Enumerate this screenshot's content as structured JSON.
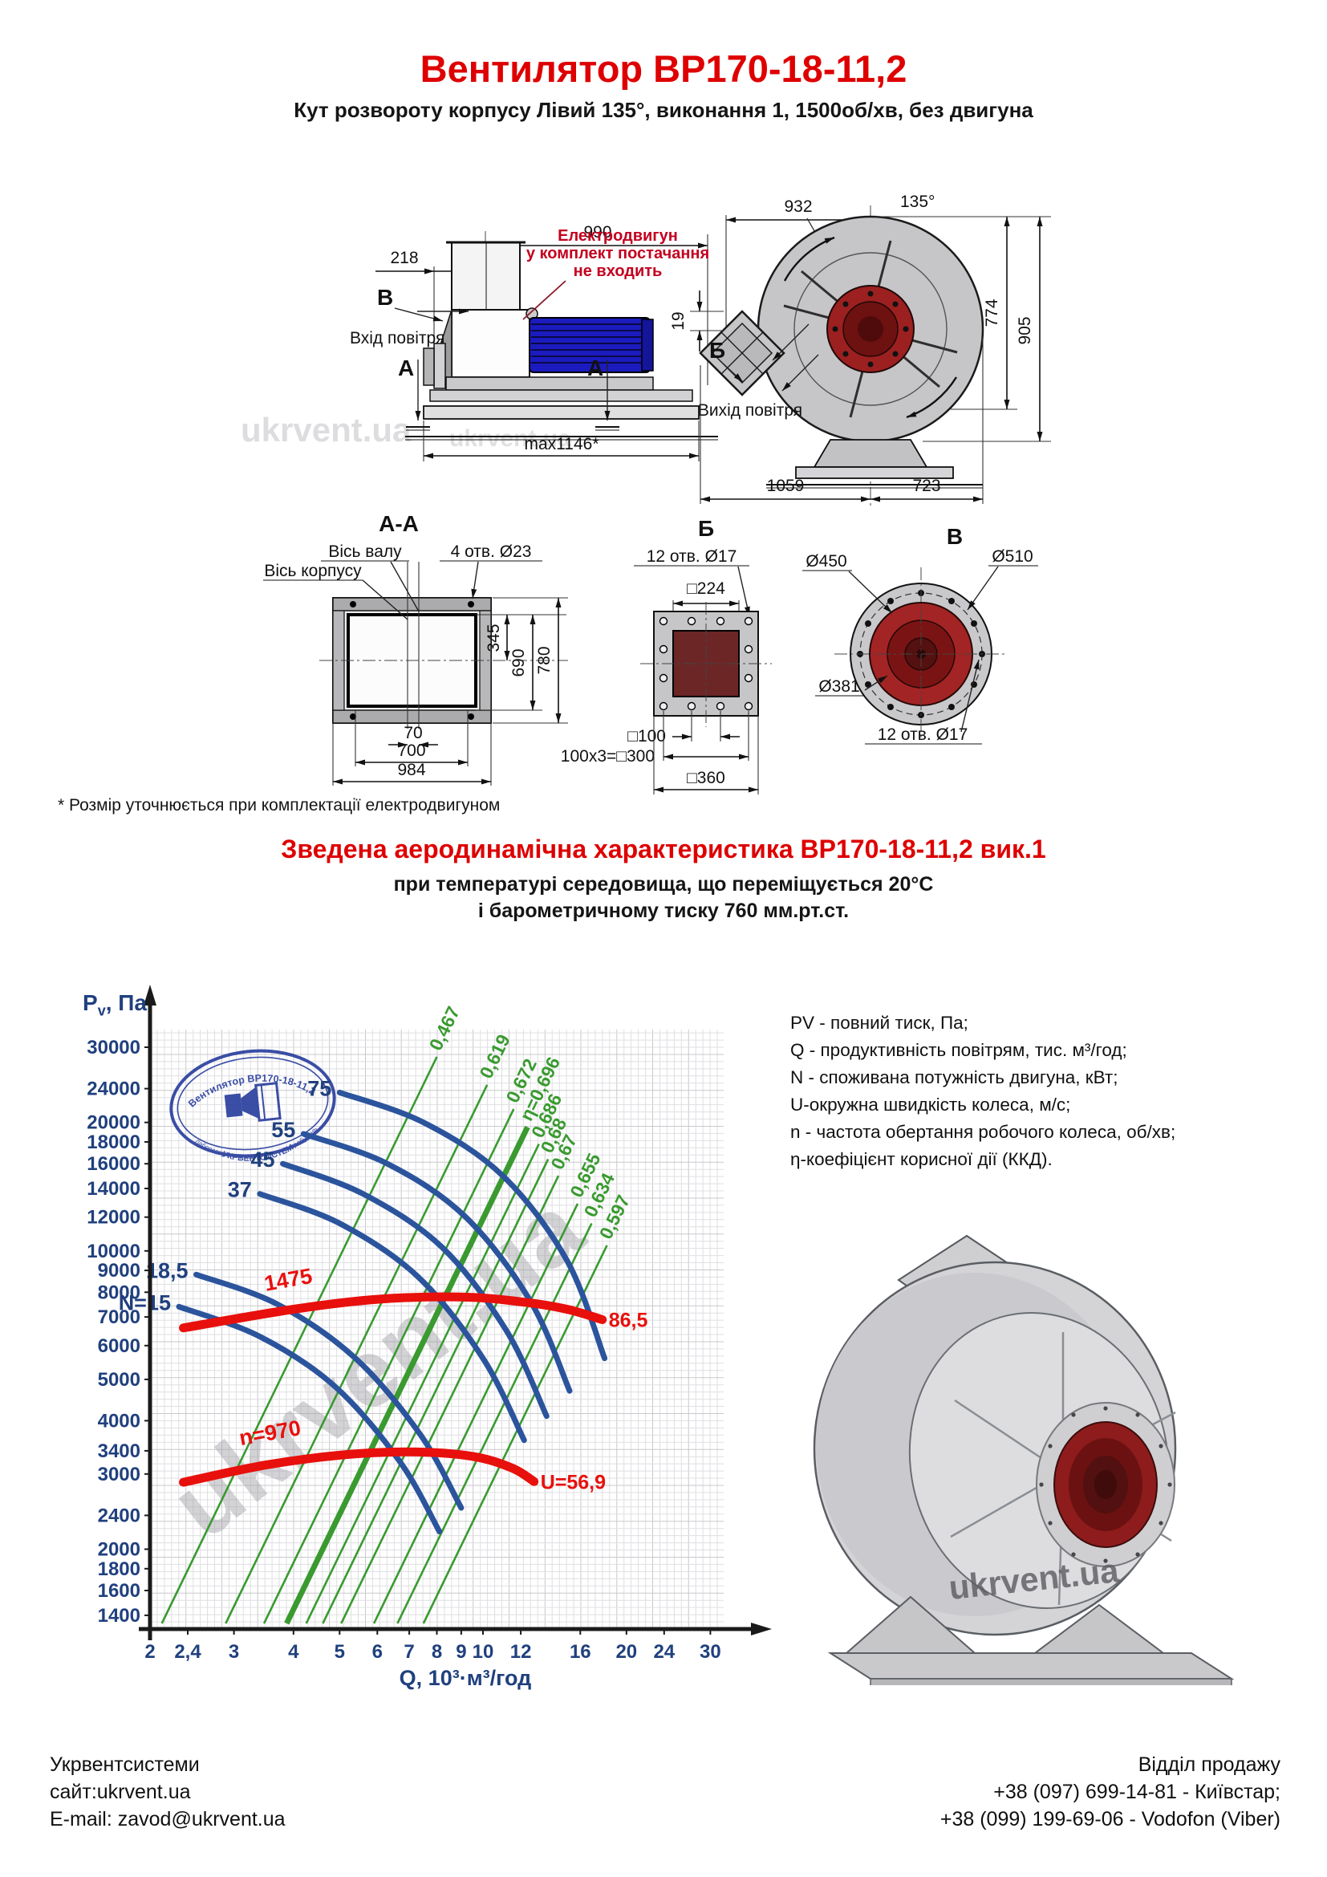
{
  "page": {
    "title": "Вентилятор ВР170-18-11,2",
    "subtitle": "Кут розвороту корпусу Лівий 135°, виконання 1, 1500об/хв, без двигуна",
    "note": "* Розмір уточнюється при комплектації електродвигуном",
    "aero_heading": "Зведена аеродинамічна характеристика ВР170-18-11,2 вик.1",
    "aero_sub1": "при температурі середовища, що переміщується 20°С",
    "aero_sub2": "і барометричному тиску 760 мм.рт.ст.",
    "watermark": "ukrvent.ua"
  },
  "drawings": {
    "side_view": {
      "dim_218": "218",
      "dim_990": "990",
      "dim_max": "max1146*",
      "label_v": "В",
      "label_a": "А",
      "inlet_label": "Вхід повітря",
      "motor_note_1": "Електродвигун",
      "motor_note_2": "у комплект постачання",
      "motor_note_3": "не входить"
    },
    "front_view": {
      "dim_932": "932",
      "dim_angle": "135°",
      "dim_19": "19",
      "dim_774": "774",
      "dim_905": "905",
      "dim_1059": "1059",
      "dim_723": "723",
      "label_b": "Б",
      "outlet_label": "Вихід повітря"
    },
    "section_aa": {
      "title": "А-А",
      "axis_shaft": "Вісь валу",
      "axis_body": "Вісь корпусу",
      "holes": "4 отв. Ø23",
      "dim_345": "345",
      "dim_690": "690",
      "dim_780": "780",
      "dim_70": "70",
      "dim_700": "700",
      "dim_984": "984"
    },
    "section_b": {
      "title": "Б",
      "holes": "12 отв. Ø17",
      "dim_224": "□224",
      "dim_100": "□100",
      "dim_300": "100х3=□300",
      "dim_360": "□360"
    },
    "section_v": {
      "title": "В",
      "d450": "Ø450",
      "d510": "Ø510",
      "d381": "Ø381",
      "holes": "12 отв. Ø17"
    }
  },
  "chart_data": {
    "type": "line",
    "title": "Зведена аеродинамічна характеристика ВР170-18-11,2 вик.1",
    "axes": "log-log",
    "grid": "fine graph-paper grid",
    "x_label": "Q, 10³·м³/год",
    "y_label_main": "P",
    "y_label_sub": "v",
    "y_label_rest": ", Па",
    "x_range": [
      2,
      32
    ],
    "y_range": [
      1300,
      33000
    ],
    "x_ticks": [
      2,
      2.4,
      3,
      4,
      5,
      6,
      7,
      8,
      9,
      10,
      12,
      16,
      20,
      24,
      30
    ],
    "x_tick_labels": [
      "2",
      "2,4",
      "3",
      "4",
      "5",
      "6",
      "7",
      "8",
      "9",
      "10",
      "12",
      "16",
      "20",
      "24",
      "30"
    ],
    "y_ticks": [
      30000,
      24000,
      20000,
      18000,
      16000,
      14000,
      12000,
      10000,
      9000,
      8000,
      7000,
      6000,
      5000,
      4000,
      3400,
      3000,
      2400,
      2000,
      1800,
      1600,
      1400
    ],
    "y_tick_labels": [
      "30000",
      "24000",
      "20000",
      "18000",
      "16000",
      "14000",
      "12000",
      "10000",
      "9000",
      "8000",
      "7000",
      "6000",
      "5000",
      "4000",
      "3400",
      "3000",
      "2400",
      "2000",
      "1800",
      "1600",
      "1400"
    ],
    "power_curves": [
      {
        "label": "75",
        "points": [
          [
            5.0,
            23500
          ],
          [
            7.5,
            20000
          ],
          [
            11,
            15000
          ],
          [
            15,
            9500
          ],
          [
            18.0,
            5600
          ]
        ]
      },
      {
        "label": "55",
        "points": [
          [
            4.2,
            18800
          ],
          [
            6.3,
            16000
          ],
          [
            9.2,
            12000
          ],
          [
            12.6,
            7600
          ],
          [
            15.2,
            4700
          ]
        ]
      },
      {
        "label": "45",
        "points": [
          [
            3.8,
            16000
          ],
          [
            5.6,
            13600
          ],
          [
            8.2,
            10200
          ],
          [
            11.2,
            6500
          ],
          [
            13.6,
            4100
          ]
        ]
      },
      {
        "label": "37",
        "points": [
          [
            3.4,
            13600
          ],
          [
            5.0,
            11600
          ],
          [
            7.3,
            8700
          ],
          [
            10.0,
            5600
          ],
          [
            12.2,
            3600
          ]
        ]
      },
      {
        "label": "18,5",
        "points": [
          [
            2.5,
            8800
          ],
          [
            3.7,
            7500
          ],
          [
            5.4,
            5600
          ],
          [
            7.4,
            3700
          ],
          [
            9.0,
            2500
          ]
        ]
      },
      {
        "label": "N=15",
        "points": [
          [
            2.3,
            7400
          ],
          [
            3.4,
            6300
          ],
          [
            4.9,
            4800
          ],
          [
            6.7,
            3200
          ],
          [
            8.1,
            2200
          ]
        ]
      }
    ],
    "efficiency_lines": [
      {
        "label": "0,467",
        "q": 8.0,
        "p": 28500,
        "bold": false
      },
      {
        "label": "0,619",
        "q": 10.2,
        "p": 24500,
        "bold": false
      },
      {
        "label": "0,672",
        "q": 11.6,
        "p": 21500,
        "bold": false
      },
      {
        "label": "η=0,696",
        "q": 12.4,
        "p": 19500,
        "bold": true
      },
      {
        "label": "0,686",
        "q": 13.1,
        "p": 17800,
        "bold": false
      },
      {
        "label": "0,68",
        "q": 13.7,
        "p": 16400,
        "bold": false
      },
      {
        "label": "0,67",
        "q": 14.4,
        "p": 15000,
        "bold": false
      },
      {
        "label": "0,655",
        "q": 15.8,
        "p": 12900,
        "bold": false
      },
      {
        "label": "0,634",
        "q": 16.9,
        "p": 11600,
        "bold": false
      },
      {
        "label": "0,597",
        "q": 18.2,
        "p": 10300,
        "bold": false
      }
    ],
    "speed_curves": [
      {
        "label": "1475",
        "label_at": [
          3.5,
          8050
        ],
        "label_rot": -10,
        "end_label": "86,5",
        "points": [
          [
            2.35,
            6600
          ],
          [
            4,
            7300
          ],
          [
            6,
            7700
          ],
          [
            9,
            7800
          ],
          [
            12,
            7600
          ],
          [
            15,
            7300
          ],
          [
            17.8,
            6900
          ]
        ]
      },
      {
        "label": "n=970",
        "label_at": [
          3.1,
          3500
        ],
        "label_rot": -10,
        "end_label": "U=56,9",
        "points": [
          [
            2.35,
            2870
          ],
          [
            3.5,
            3150
          ],
          [
            5,
            3320
          ],
          [
            7,
            3380
          ],
          [
            9.5,
            3300
          ],
          [
            11.5,
            3100
          ],
          [
            12.8,
            2880
          ]
        ]
      }
    ],
    "stamp": {
      "line1": "Вентилятор ВР170-18-11,2",
      "line2": "лабораторія аеродинамічних випробувань",
      "line3": "УКРВЕНТСИСТЕМ"
    },
    "colors": {
      "curve_blue": "#2b549c",
      "eff_green": "#3a9a30",
      "speed_red": "#e8100c",
      "tick_navy": "#20407e",
      "grid_minor": "#dfdfe3",
      "grid_major": "#c9c9ce"
    }
  },
  "legend": {
    "lines": [
      "PV - повний тиск, Па;",
      "Q - продуктивність повітрям, тис. м³/год;",
      "N - споживана потужність двигуна, кВт;",
      "U-окружна швидкість колеса, м/с;",
      "n - частота обертання робочого колеса, об/хв;",
      "η-коефіцієнт корисної дії (ККД)."
    ]
  },
  "footer": {
    "company": "Укрвентсистеми",
    "site": "сайт:ukrvent.ua",
    "email": "E-mail: zavod@ukrvent.ua",
    "sales_title": "Відділ продажу",
    "phone1": "+38 (097) 699-14-81 - Київстар;",
    "phone2": "+38 (099) 199-69-06 - Vodofon (Viber)"
  }
}
